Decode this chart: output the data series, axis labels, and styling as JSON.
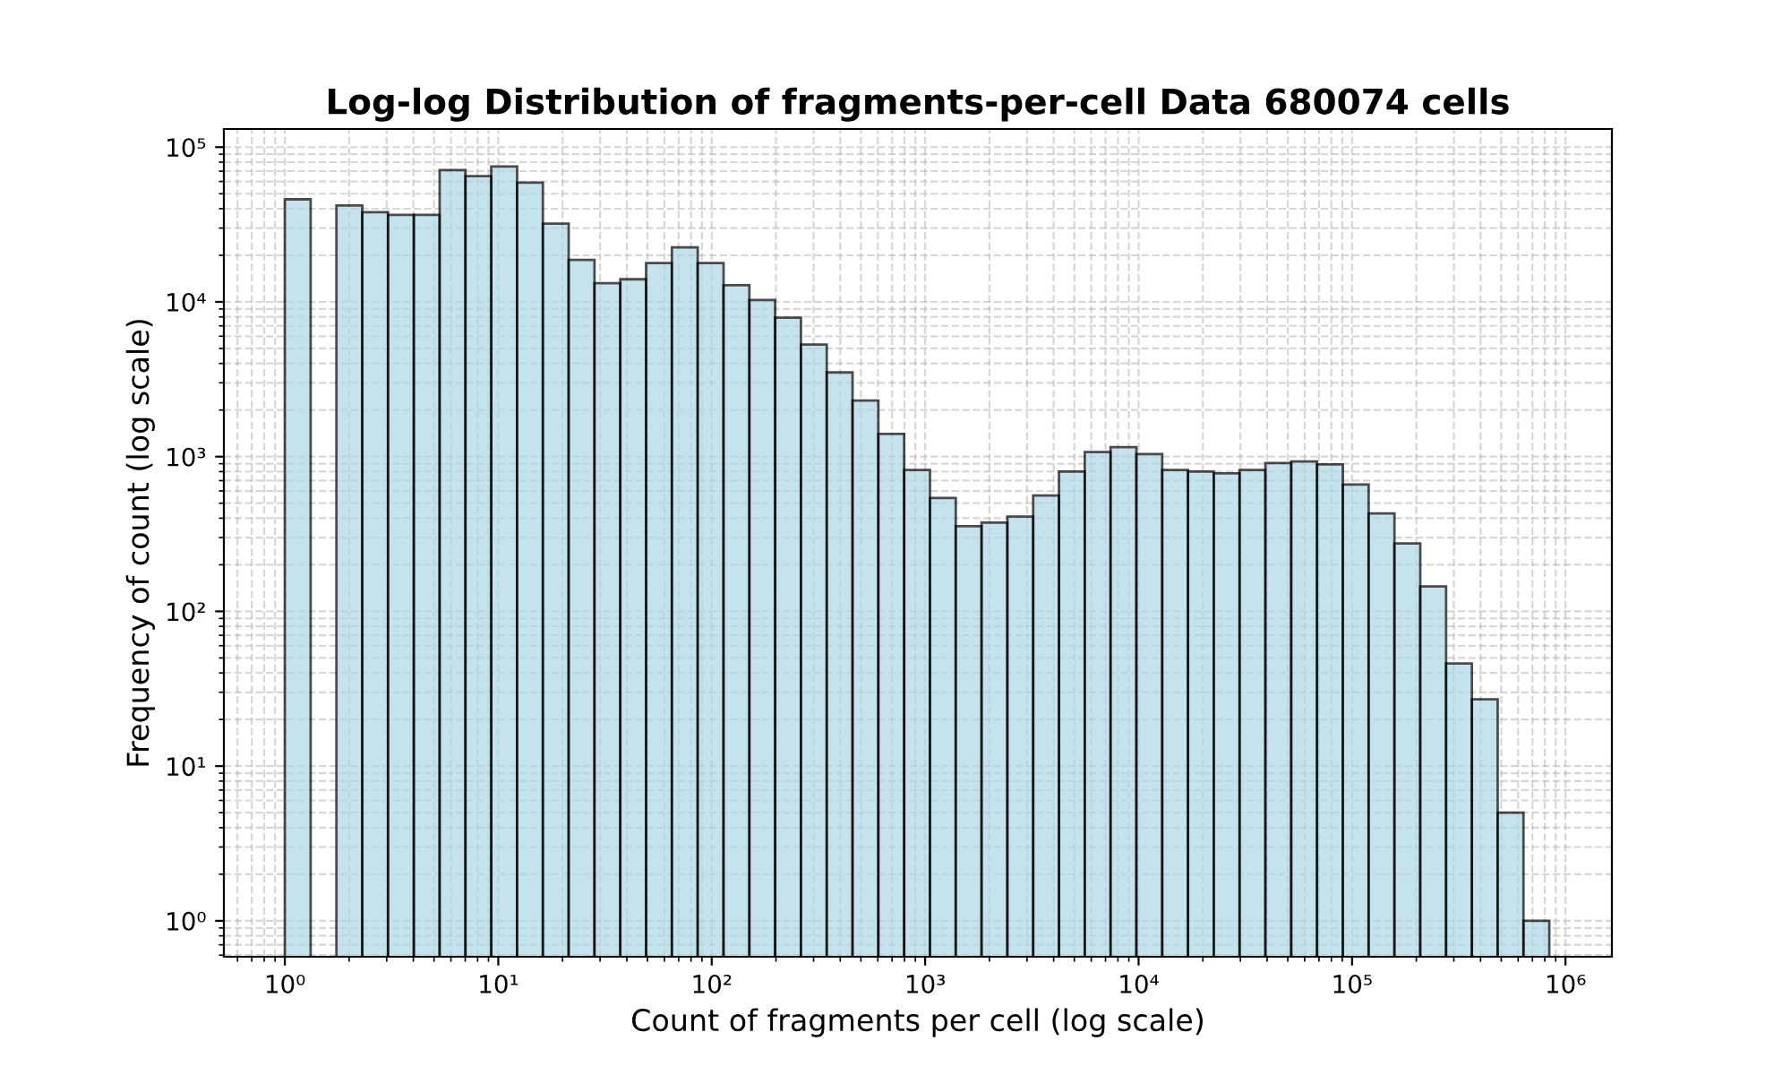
{
  "chart_data": {
    "type": "histogram",
    "title": "Log-log Distribution of fragments-per-cell Data 680074 cells",
    "xlabel": "Count of fragments per cell (log scale)",
    "ylabel": "Frequency of count (log scale)",
    "log": "xy",
    "color": "#add8e6",
    "grid": true,
    "bins": [
      1,
      1.321,
      1.745,
      2.305,
      3.045,
      4.022,
      5.313,
      7.018,
      9.27,
      12.25,
      16.18,
      21.37,
      28.23,
      37.29,
      49.26,
      65.07,
      85.96,
      113.6,
      150.1,
      198.2,
      261.8,
      345.9,
      456.9,
      603.5,
      797.2,
      1053,
      1391,
      1838,
      2428,
      3207,
      4236,
      5596,
      7392,
      9765,
      12900,
      17040,
      22510,
      29730,
      39280,
      51890,
      68550,
      90550,
      119600,
      158000,
      208700,
      275800,
      364300,
      481200,
      635700,
      839700
    ],
    "values": [
      46000,
      null,
      42000,
      38000,
      36500,
      36500,
      71000,
      65000,
      75000,
      59000,
      32000,
      18700,
      13200,
      14000,
      17800,
      22500,
      17800,
      12800,
      10300,
      7900,
      5300,
      3500,
      2300,
      1400,
      820,
      540,
      355,
      375,
      410,
      560,
      800,
      1070,
      1150,
      1040,
      820,
      800,
      780,
      820,
      910,
      930,
      890,
      660,
      430,
      275,
      145,
      46,
      27,
      5,
      1
    ],
    "xlim": [
      0.518,
      1650000
    ],
    "ylim": [
      0.586,
      131000
    ],
    "xticks": [
      {
        "value": 1,
        "label": "10⁰"
      },
      {
        "value": 10,
        "label": "10¹"
      },
      {
        "value": 100,
        "label": "10²"
      },
      {
        "value": 1000,
        "label": "10³"
      },
      {
        "value": 10000,
        "label": "10⁴"
      },
      {
        "value": 100000,
        "label": "10⁵"
      },
      {
        "value": 1000000,
        "label": "10⁶"
      }
    ],
    "yticks": [
      {
        "value": 1,
        "label": "10⁰"
      },
      {
        "value": 10,
        "label": "10¹"
      },
      {
        "value": 100,
        "label": "10²"
      },
      {
        "value": 1000,
        "label": "10³"
      },
      {
        "value": 10000,
        "label": "10⁴"
      },
      {
        "value": 100000,
        "label": "10⁵"
      }
    ]
  }
}
